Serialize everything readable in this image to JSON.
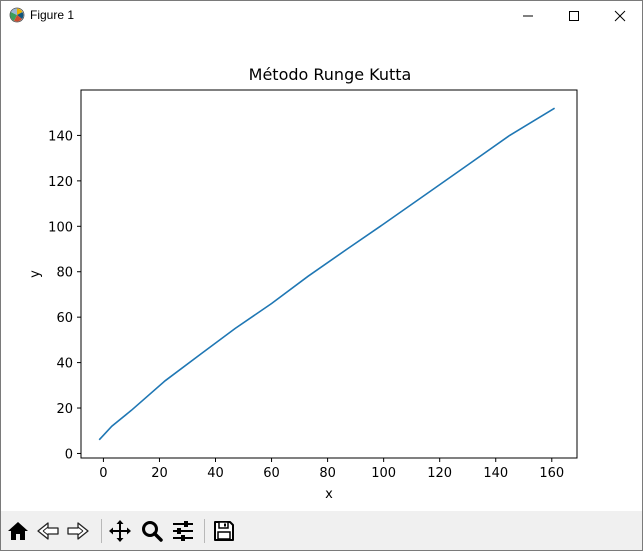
{
  "window": {
    "title": "Figure 1"
  },
  "toolbar": {
    "buttons": [
      {
        "name": "home",
        "icon": "home-icon"
      },
      {
        "name": "back",
        "icon": "back-arrow-icon"
      },
      {
        "name": "forward",
        "icon": "forward-arrow-icon"
      },
      {
        "name": "pan",
        "icon": "move-icon"
      },
      {
        "name": "zoom",
        "icon": "magnifier-icon"
      },
      {
        "name": "configure-subplots",
        "icon": "sliders-icon"
      },
      {
        "name": "save",
        "icon": "floppy-disk-icon"
      }
    ]
  },
  "chart_data": {
    "type": "line",
    "title": "Método Runge Kutta",
    "xlabel": "x",
    "ylabel": "y",
    "xlim": [
      -8,
      169
    ],
    "ylim": [
      -2,
      160
    ],
    "xticks": [
      0,
      20,
      40,
      60,
      80,
      100,
      120,
      140,
      160
    ],
    "yticks": [
      0,
      20,
      40,
      60,
      80,
      100,
      120,
      140
    ],
    "grid": false,
    "legend": "none",
    "line_color": "#1f77b4",
    "series": [
      {
        "name": "y",
        "x": [
          -1.5,
          0,
          3,
          10,
          22,
          35,
          47,
          60,
          73,
          87,
          100,
          115,
          130,
          145,
          161
        ],
        "y": [
          6,
          8,
          12,
          19,
          32,
          44,
          55,
          66,
          78,
          90,
          101,
          114,
          127,
          140,
          152
        ]
      }
    ]
  }
}
